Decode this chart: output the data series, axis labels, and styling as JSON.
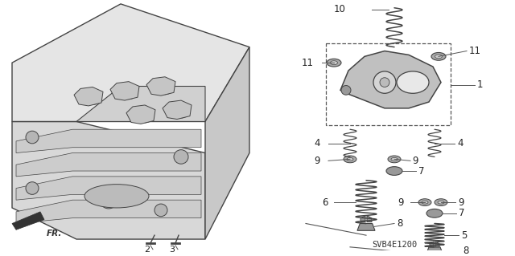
{
  "bg_color": "#ffffff",
  "diagram_code": "SVB4E1200",
  "figure_width": 6.4,
  "figure_height": 3.19,
  "dpi": 100,
  "line_color": "#444444",
  "fill_light": "#cccccc",
  "fill_mid": "#aaaaaa",
  "fill_dark": "#888888"
}
